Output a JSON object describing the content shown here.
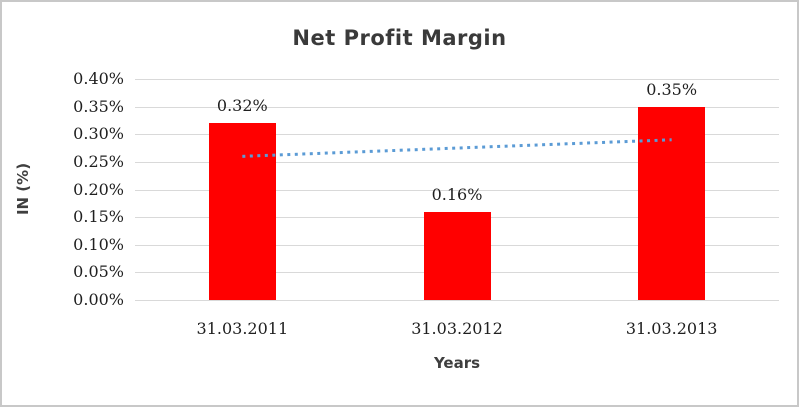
{
  "window": {
    "background_color": "#FFFFFF",
    "border_color": "#C8C8C8"
  },
  "chart_data": {
    "type": "bar",
    "title": "Net Profit Margin",
    "xlabel": "Years",
    "ylabel": "IN (%)",
    "categories": [
      "31.03.2011",
      "31.03.2012",
      "31.03.2013"
    ],
    "values": [
      0.32,
      0.16,
      0.35
    ],
    "data_labels": [
      "0.32%",
      "0.16%",
      "0.35%"
    ],
    "ylim": [
      0,
      0.4
    ],
    "ytick_step": 0.05,
    "ytick_labels": [
      "0.00%",
      "0.05%",
      "0.10%",
      "0.15%",
      "0.20%",
      "0.25%",
      "0.30%",
      "0.35%",
      "0.40%"
    ],
    "grid": "horizontal",
    "gridline_color": "#D9D9D9",
    "legend": "none",
    "bar_color": "#FF0000",
    "trendline": {
      "type": "linear",
      "style": "dotted",
      "color": "#5B9BD5",
      "start_value": 0.26,
      "end_value": 0.29
    }
  }
}
